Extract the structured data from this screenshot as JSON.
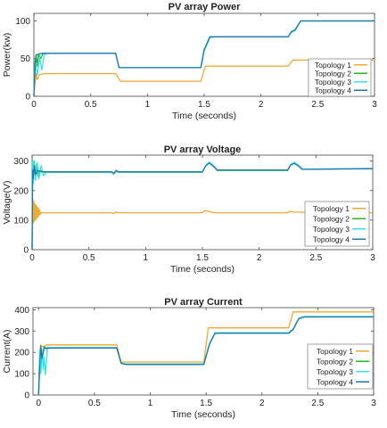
{
  "chart_data": [
    {
      "type": "line",
      "title": "PV array Power",
      "xlabel": "Time (seconds)",
      "ylabel": "Power(kw)",
      "xlim": [
        0,
        3
      ],
      "ylim": [
        0,
        110
      ],
      "xticks": [
        0,
        0.5,
        1,
        1.5,
        2,
        2.5,
        3
      ],
      "xtick_labels": [
        "0",
        "0.5",
        "1",
        "1.5",
        "2",
        "2.5",
        "3"
      ],
      "yticks": [
        0,
        50,
        100
      ],
      "ytick_labels": [
        "0",
        "50",
        "100"
      ],
      "grid": false,
      "legend": "bottom-right",
      "series": [
        {
          "name": "Topology 1",
          "color": "#f0a830",
          "x": [
            0,
            0.01,
            0.02,
            0.03,
            0.05,
            0.1,
            0.72,
            0.76,
            1.47,
            1.51,
            2.24,
            2.28,
            3.0
          ],
          "y": [
            0,
            18,
            30,
            22,
            29,
            30,
            30,
            20,
            20,
            40,
            40,
            48,
            48
          ]
        },
        {
          "name": "Topology 2",
          "color": "#22bb22",
          "x": [
            0,
            0.01,
            0.02,
            0.03,
            0.04,
            0.06,
            0.08,
            0.1,
            0.72,
            0.75,
            1.47,
            1.5,
            1.55,
            1.6,
            2.24,
            2.27,
            2.3,
            2.35,
            3.0
          ],
          "y": [
            0,
            35,
            55,
            40,
            56,
            50,
            57,
            57,
            57,
            38,
            38,
            62,
            78,
            79,
            79,
            86,
            88,
            100,
            100
          ]
        },
        {
          "name": "Topology 3",
          "color": "#33e3e3",
          "x": [
            0,
            0.01,
            0.03,
            0.05,
            0.07,
            0.09,
            0.12,
            0.72,
            0.75,
            1.47,
            1.5,
            1.55,
            1.6,
            2.24,
            2.27,
            2.3,
            2.35,
            3.0
          ],
          "y": [
            0,
            48,
            28,
            52,
            35,
            55,
            57,
            57,
            38,
            38,
            60,
            78,
            79,
            79,
            85,
            87,
            100,
            100
          ]
        },
        {
          "name": "Topology 4",
          "color": "#1f77b4",
          "x": [
            0,
            0.01,
            0.02,
            0.04,
            0.07,
            0.1,
            0.72,
            0.75,
            1.47,
            1.5,
            1.55,
            1.6,
            2.24,
            2.27,
            2.3,
            2.35,
            3.0
          ],
          "y": [
            0,
            40,
            55,
            56,
            57,
            57,
            57,
            38,
            38,
            62,
            79,
            79,
            79,
            86,
            88,
            100,
            100
          ]
        }
      ]
    },
    {
      "type": "line",
      "title": "PV array Voltage",
      "xlabel": "Time (seconds)",
      "ylabel": "Voltage(V)",
      "xlim": [
        0,
        3
      ],
      "ylim": [
        0,
        320
      ],
      "xticks": [
        0,
        0.5,
        1,
        1.5,
        2,
        2.5,
        3
      ],
      "xtick_labels": [
        "0",
        "0.5",
        "1",
        "1.5",
        "2",
        "2.5",
        "3"
      ],
      "yticks": [
        0,
        100,
        200,
        300
      ],
      "ytick_labels": [
        "0",
        "100",
        "200",
        "300"
      ],
      "grid": false,
      "legend": "bottom-right",
      "series": [
        {
          "name": "Topology 1",
          "color": "#f0a830",
          "x": [
            0,
            0.005,
            0.01,
            0.015,
            0.02,
            0.025,
            0.03,
            0.035,
            0.04,
            0.045,
            0.05,
            0.055,
            0.06,
            0.065,
            0.07,
            0.08,
            0.1,
            0.7,
            0.72,
            0.74,
            0.76,
            1.5,
            1.52,
            1.55,
            1.6,
            2.25,
            2.27,
            2.3,
            3.0
          ],
          "y": [
            0,
            175,
            90,
            165,
            95,
            155,
            100,
            150,
            105,
            145,
            110,
            140,
            115,
            135,
            120,
            125,
            125,
            125,
            122,
            128,
            125,
            125,
            132,
            130,
            125,
            125,
            130,
            127,
            125
          ]
        },
        {
          "name": "Topology 2",
          "color": "#22bb22",
          "x": [
            0,
            0.005,
            0.01,
            0.02,
            0.03,
            0.04,
            0.05,
            0.07,
            0.1,
            0.7,
            0.72,
            0.74,
            0.76,
            1.5,
            1.53,
            1.56,
            1.6,
            1.63,
            2.25,
            2.28,
            2.31,
            2.35,
            2.38,
            3.0
          ],
          "y": [
            0,
            290,
            230,
            300,
            245,
            290,
            250,
            270,
            262,
            262,
            256,
            266,
            262,
            262,
            285,
            295,
            282,
            268,
            268,
            288,
            294,
            283,
            272,
            274
          ]
        },
        {
          "name": "Topology 3",
          "color": "#33e3e3",
          "x": [
            0,
            0.005,
            0.012,
            0.02,
            0.03,
            0.045,
            0.06,
            0.08,
            0.1,
            0.13,
            0.7,
            0.72,
            0.74,
            0.76,
            1.5,
            1.53,
            1.56,
            1.6,
            1.63,
            2.25,
            2.28,
            2.31,
            2.35,
            2.38,
            3.0
          ],
          "y": [
            0,
            305,
            225,
            300,
            235,
            295,
            240,
            285,
            250,
            263,
            263,
            257,
            268,
            263,
            263,
            286,
            297,
            284,
            270,
            270,
            289,
            296,
            285,
            273,
            275
          ]
        },
        {
          "name": "Topology 4",
          "color": "#1f77b4",
          "x": [
            0,
            0.005,
            0.01,
            0.02,
            0.03,
            0.05,
            0.08,
            0.7,
            0.72,
            0.74,
            0.76,
            1.5,
            1.53,
            1.56,
            1.6,
            1.63,
            2.25,
            2.28,
            2.31,
            2.35,
            2.38,
            3.0
          ],
          "y": [
            0,
            270,
            240,
            285,
            255,
            268,
            264,
            264,
            258,
            268,
            264,
            264,
            284,
            293,
            281,
            270,
            270,
            287,
            292,
            282,
            272,
            274
          ]
        }
      ]
    },
    {
      "type": "line",
      "title": "PV array Current",
      "xlabel": "Time (seconds)",
      "ylabel": "Current(A)",
      "xlim": [
        -0.05,
        3
      ],
      "ylim": [
        0,
        410
      ],
      "xticks": [
        0,
        0.5,
        1,
        1.5,
        2,
        2.5,
        3
      ],
      "xtick_labels": [
        "0",
        "0.5",
        "1",
        "1.5",
        "2",
        "2.5",
        "3"
      ],
      "yticks": [
        0,
        100,
        200,
        300,
        400
      ],
      "ytick_labels": [
        "0",
        "100",
        "200",
        "300",
        "400"
      ],
      "grid": false,
      "legend": "bottom-right",
      "series": [
        {
          "name": "Topology 1",
          "color": "#f0a830",
          "x": [
            0,
            0.01,
            0.02,
            0.04,
            0.07,
            0.7,
            0.74,
            1.48,
            1.52,
            2.24,
            2.28,
            3.0
          ],
          "y": [
            0,
            200,
            235,
            225,
            235,
            235,
            155,
            155,
            315,
            315,
            390,
            390
          ]
        },
        {
          "name": "Topology 2",
          "color": "#22bb22",
          "x": [
            0,
            0.01,
            0.02,
            0.03,
            0.05,
            0.07,
            0.1,
            0.7,
            0.74,
            0.78,
            1.48,
            1.53,
            1.58,
            2.24,
            2.28,
            2.33,
            2.38,
            3.0
          ],
          "y": [
            0,
            150,
            225,
            160,
            228,
            215,
            222,
            222,
            150,
            145,
            145,
            240,
            292,
            292,
            310,
            360,
            368,
            368
          ]
        },
        {
          "name": "Topology 3",
          "color": "#33e3e3",
          "x": [
            0,
            0.01,
            0.02,
            0.03,
            0.04,
            0.05,
            0.06,
            0.08,
            0.11,
            0.7,
            0.74,
            0.78,
            1.48,
            1.53,
            1.58,
            2.24,
            2.28,
            2.33,
            2.38,
            3.0
          ],
          "y": [
            0,
            210,
            100,
            215,
            120,
            180,
            95,
            225,
            222,
            222,
            150,
            145,
            145,
            240,
            292,
            292,
            310,
            360,
            368,
            368
          ]
        },
        {
          "name": "Topology 4",
          "color": "#1f77b4",
          "x": [
            0,
            0.01,
            0.02,
            0.03,
            0.05,
            0.08,
            0.7,
            0.74,
            0.78,
            1.48,
            1.53,
            1.58,
            2.24,
            2.28,
            2.33,
            2.38,
            3.0
          ],
          "y": [
            0,
            130,
            230,
            170,
            220,
            220,
            220,
            148,
            143,
            143,
            238,
            290,
            290,
            308,
            358,
            366,
            366
          ]
        }
      ]
    }
  ]
}
